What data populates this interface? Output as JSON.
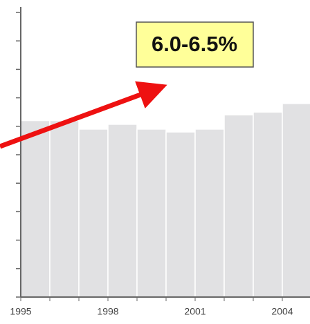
{
  "chart_data": {
    "type": "bar",
    "categories": [
      "1995",
      null,
      null,
      "1998",
      null,
      null,
      "2001",
      null,
      null,
      "2004"
    ],
    "values": [
      6.2,
      6.2,
      5.9,
      6.07,
      5.9,
      5.8,
      5.9,
      6.4,
      6.5,
      6.8
    ],
    "color": "#e1e1e3",
    "ylim": [
      0,
      10
    ],
    "yticks": [
      0,
      1,
      2,
      3,
      4,
      5,
      6,
      7,
      8,
      9,
      10
    ],
    "annotation": "6.0-6.5%"
  }
}
